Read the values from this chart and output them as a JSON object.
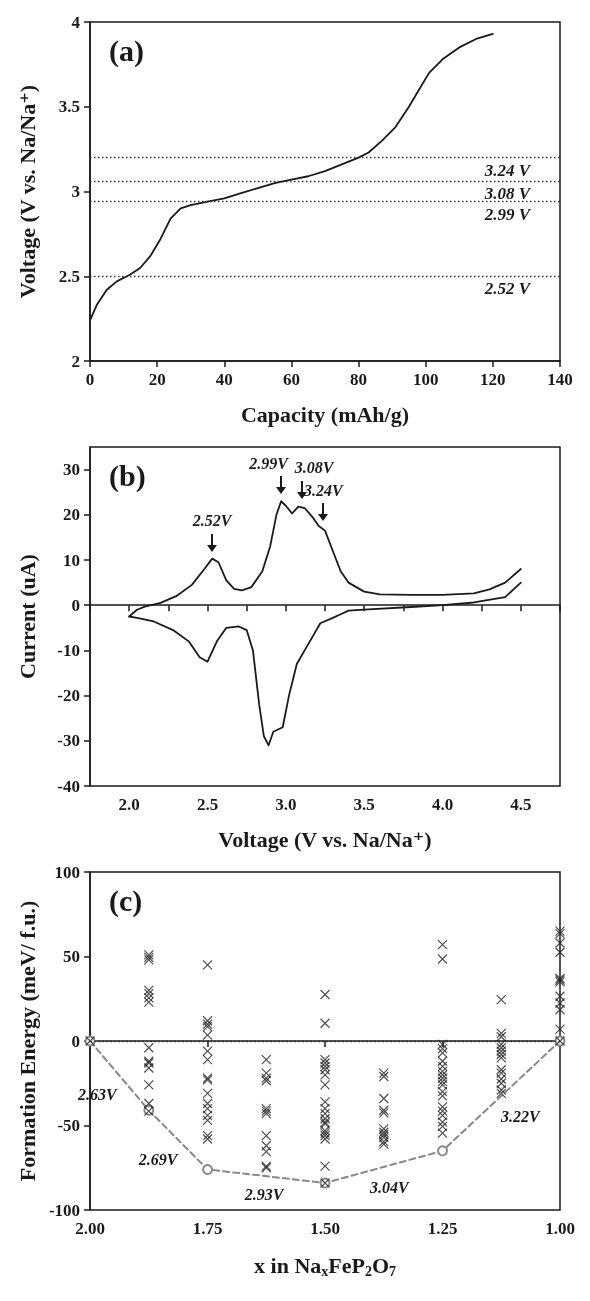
{
  "chart_data": [
    {
      "type": "line",
      "title": "(a)",
      "xlabel": "Capacity (mAh/g)",
      "ylabel": "Voltage (V vs. Na/Na⁺)",
      "xlim": [
        0,
        140
      ],
      "xticks": [
        0,
        20,
        40,
        60,
        80,
        100,
        120,
        140
      ],
      "ylim": [
        2,
        4
      ],
      "yticks": [
        2,
        2.5,
        3,
        3.5,
        4
      ],
      "line_style": "solid",
      "marker": "none",
      "series": [
        {
          "color": "#1a1a1a",
          "x": [
            0,
            2,
            5,
            8,
            12,
            15,
            18,
            21,
            24,
            27,
            30,
            35,
            40,
            45,
            50,
            55,
            60,
            65,
            70,
            75,
            80,
            83,
            87,
            91,
            95,
            98,
            101,
            105,
            110,
            115,
            120
          ],
          "values": [
            2.24,
            2.33,
            2.42,
            2.47,
            2.51,
            2.55,
            2.62,
            2.72,
            2.84,
            2.9,
            2.92,
            2.94,
            2.96,
            2.99,
            3.02,
            3.05,
            3.07,
            3.09,
            3.12,
            3.16,
            3.2,
            3.23,
            3.3,
            3.38,
            3.5,
            3.6,
            3.7,
            3.78,
            3.85,
            3.9,
            3.93
          ]
        }
      ],
      "ref_lines": [
        {
          "axis": "y",
          "value": 3.2,
          "label": "3.24 V",
          "color": "#333333",
          "line_style": "dotted"
        },
        {
          "axis": "y",
          "value": 3.06,
          "label": "3.08 V",
          "color": "#333333",
          "line_style": "dotted"
        },
        {
          "axis": "y",
          "value": 2.94,
          "label": "2.99 V",
          "color": "#333333",
          "line_style": "dotted"
        },
        {
          "axis": "y",
          "value": 2.5,
          "label": "2.52 V",
          "color": "#333333",
          "line_style": "dotted"
        }
      ]
    },
    {
      "type": "line",
      "title": "(b)",
      "xlabel": "Voltage (V vs. Na/Na⁺)",
      "ylabel": "Current (uA)",
      "xlim": [
        1.75,
        4.75
      ],
      "xticks": [
        {
          "value": 1.75,
          "label": null
        },
        {
          "value": 2,
          "label": "2.0"
        },
        {
          "value": 2.25,
          "label": null
        },
        {
          "value": 2.5,
          "label": "2.5"
        },
        {
          "value": 2.75,
          "label": null
        },
        {
          "value": 3,
          "label": "3.0"
        },
        {
          "value": 3.25,
          "label": null
        },
        {
          "value": 3.5,
          "label": "3.5"
        },
        {
          "value": 3.75,
          "label": null
        },
        {
          "value": 4,
          "label": "4.0"
        },
        {
          "value": 4.25,
          "label": null
        },
        {
          "value": 4.5,
          "label": "4.5"
        },
        {
          "value": 4.75,
          "label": null
        }
      ],
      "ylim": [
        -40,
        35
      ],
      "yticks": [
        -40,
        -30,
        -20,
        -10,
        0,
        10,
        20,
        30
      ],
      "line_style": "solid",
      "marker": "none",
      "series": [
        {
          "color": "#1a1a1a",
          "x": [
            2,
            2.05,
            2.1,
            2.2,
            2.3,
            2.4,
            2.48,
            2.53,
            2.57,
            2.62,
            2.67,
            2.72,
            2.78,
            2.85,
            2.9,
            2.94,
            2.97,
            3,
            3.04,
            3.08,
            3.12,
            3.17,
            3.21,
            3.25,
            3.3,
            3.35,
            3.4,
            3.5,
            3.6,
            3.8,
            4,
            4.2,
            4.3,
            4.4,
            4.5
          ],
          "values": [
            -2.5,
            -1,
            -0.3,
            0.5,
            2,
            4.5,
            8,
            10.3,
            9.5,
            5.5,
            3.6,
            3.3,
            4,
            7.5,
            13,
            20,
            23,
            22,
            20.3,
            21.8,
            21.5,
            19.5,
            17.5,
            16.5,
            12,
            7.5,
            5,
            3,
            2.4,
            2.3,
            2.3,
            2.6,
            3.5,
            5,
            8
          ]
        },
        {
          "color": "#1a1a1a",
          "x": [
            2,
            2.05,
            2.15,
            2.28,
            2.38,
            2.45,
            2.5,
            2.56,
            2.62,
            2.7,
            2.75,
            2.79,
            2.83,
            2.86,
            2.89,
            2.92,
            2.95,
            2.98,
            3.02,
            3.07,
            3.12,
            3.17,
            3.22,
            3.3,
            3.35,
            3.4,
            3.5,
            3.8,
            4,
            4.2,
            4.4,
            4.5
          ],
          "values": [
            -2.5,
            -2.8,
            -3.5,
            -5.5,
            -8,
            -11.5,
            -12.5,
            -8,
            -5,
            -4.7,
            -5.5,
            -10,
            -22,
            -29,
            -31,
            -28,
            -27.5,
            -27,
            -20,
            -13,
            -10,
            -7,
            -4,
            -2.8,
            -2,
            -1.2,
            -1,
            -0.4,
            0,
            0.6,
            1.8,
            5
          ]
        }
      ],
      "annotations": [
        {
          "text": "2.52V",
          "x": 2.53,
          "y": 10.3
        },
        {
          "text": "2.99V",
          "x": 2.97,
          "y": 23
        },
        {
          "text": "3.08V",
          "x": 3.1,
          "y": 22
        },
        {
          "text": "3.24V",
          "x": 3.24,
          "y": 17
        }
      ]
    },
    {
      "type": "scatter",
      "title": "(c)",
      "xlabel": "x in Na$_{x}$FeP$_{2}$O$_{7}$",
      "ylabel": "Formation Energy (meV/ f.u.)",
      "xlim": [
        2,
        1
      ],
      "xticks": [
        {
          "value": 2,
          "label": "2.00"
        },
        1.75,
        {
          "value": 1.5,
          "label": "1.50"
        },
        1.25,
        {
          "value": 1,
          "label": "1.00"
        }
      ],
      "ylim": [
        -100,
        100
      ],
      "yticks": [
        -100,
        -50,
        0,
        50,
        100
      ],
      "marker": "cross",
      "series": [
        {
          "type": "scatter",
          "color": "#222222",
          "x": [
            2,
            1.875,
            1.875,
            1.875,
            1.875,
            1.875,
            1.875,
            1.875,
            1.875,
            1.875,
            1.875,
            1.875,
            1.875,
            1.875,
            1.875,
            1.75,
            1.75,
            1.75,
            1.75,
            1.75,
            1.75,
            1.75,
            1.75,
            1.75,
            1.75,
            1.75,
            1.75,
            1.75,
            1.75,
            1.75,
            1.75,
            1.625,
            1.625,
            1.625,
            1.625,
            1.625,
            1.625,
            1.625,
            1.625,
            1.625,
            1.625,
            1.625,
            1.625,
            1.5,
            1.5,
            1.5,
            1.5,
            1.5,
            1.5,
            1.5,
            1.5,
            1.5,
            1.5,
            1.5,
            1.5,
            1.5,
            1.5,
            1.5,
            1.5,
            1.5,
            1.5,
            1.5,
            1.5,
            1.375,
            1.375,
            1.375,
            1.375,
            1.375,
            1.375,
            1.375,
            1.375,
            1.375,
            1.375,
            1.375,
            1.25,
            1.25,
            1.25,
            1.25,
            1.25,
            1.25,
            1.25,
            1.25,
            1.25,
            1.25,
            1.25,
            1.25,
            1.25,
            1.25,
            1.25,
            1.25,
            1.25,
            1.25,
            1.25,
            1.25,
            1.125,
            1.125,
            1.125,
            1.125,
            1.125,
            1.125,
            1.125,
            1.125,
            1.125,
            1.125,
            1.125,
            1.125,
            1.125,
            1.125,
            1,
            1,
            1,
            1,
            1,
            1,
            1,
            1,
            1,
            1,
            1,
            1
          ],
          "values": [
            0,
            51,
            49.5,
            48,
            30,
            28,
            25.5,
            23,
            -4,
            -12,
            -13,
            -16,
            -26,
            -37,
            -41.5,
            45,
            12,
            10,
            8.5,
            3.5,
            -6,
            -11,
            -22,
            -23,
            -31,
            -37,
            -40,
            -44,
            -47,
            -56,
            -58,
            -11,
            -19,
            -22,
            -23.5,
            -40,
            -41.5,
            -43,
            -56,
            -62,
            -65.5,
            -74,
            -75,
            27.5,
            10.5,
            -11,
            -13,
            -15,
            -17,
            -20,
            -26,
            -36,
            -40,
            -43,
            -46,
            -48,
            -49,
            -53,
            -54.5,
            -56,
            -58,
            -74,
            -84,
            -19,
            -21,
            -34,
            -41,
            -42.5,
            -52,
            -54,
            -55.5,
            -57,
            -59.5,
            -61,
            57,
            48.5,
            -2,
            -4.5,
            -7,
            -12,
            -15,
            -18,
            -20,
            -22,
            -24,
            -26,
            -30,
            -32.5,
            -39,
            -41.5,
            -44,
            -48,
            -50.5,
            -54.5,
            24.5,
            4.5,
            2.5,
            -2,
            -4,
            -6,
            -8,
            -10,
            -17,
            -19,
            -22.5,
            -25,
            -29,
            -31,
            65,
            63.5,
            58,
            52.5,
            37,
            36,
            35,
            26.5,
            22.5,
            18.5,
            7,
            0
          ]
        },
        {
          "type": "line",
          "color": "#888888",
          "marker": "circle",
          "line_style": "dashed",
          "x": [
            2,
            1.875,
            1.75,
            1.5,
            1.25,
            1
          ],
          "values": [
            0,
            -41,
            -76,
            -84,
            -65,
            0
          ]
        }
      ],
      "ref_lines": [
        {
          "axis": "y",
          "value": 0,
          "color": "#333333",
          "line_style": "dotted"
        }
      ],
      "annotations": [
        {
          "text": "2.63V",
          "x": 1.9375,
          "y": -20.5
        },
        {
          "text": "2.69V",
          "x": 1.8125,
          "y": -58.5
        },
        {
          "text": "2.93V",
          "x": 1.625,
          "y": -80
        },
        {
          "text": "3.04V",
          "x": 1.375,
          "y": -74.5
        },
        {
          "text": "3.22V",
          "x": 1.125,
          "y": -32.5
        }
      ]
    }
  ]
}
